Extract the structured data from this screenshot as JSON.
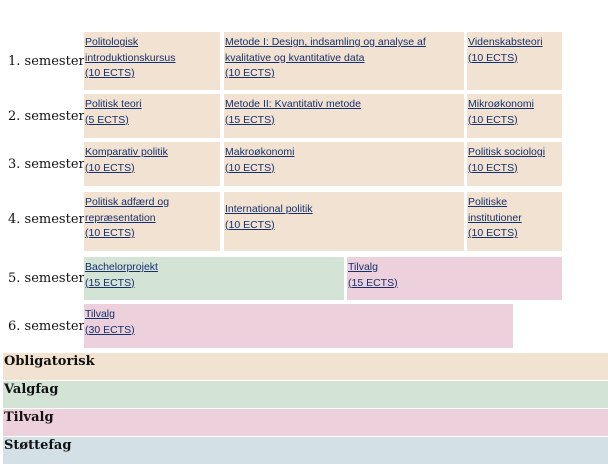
{
  "semesters": [
    {
      "label": "1. semester",
      "courses": [
        {
          "title": "Politologisk introduktionskursus",
          "ects": "(10 ECTS)",
          "type": "obligatorisk"
        },
        {
          "title": "Metode I: Design, indsamling og analyse af kvalitative og kvantitative data",
          "ects": "(10 ECTS)",
          "type": "obligatorisk"
        },
        {
          "title": "Videnskabsteori",
          "ects": "(10 ECTS)",
          "type": "obligatorisk"
        }
      ]
    },
    {
      "label": "2. semester",
      "courses": [
        {
          "title": "Politisk teori",
          "ects": "(5 ECTS)",
          "type": "obligatorisk"
        },
        {
          "title": "Metode II: Kvantitativ metode",
          "ects": "(15 ECTS)",
          "type": "obligatorisk"
        },
        {
          "title": "Mikroøkonomi",
          "ects": "(10 ECTS)",
          "type": "obligatorisk"
        }
      ]
    },
    {
      "label": "3. semester",
      "courses": [
        {
          "title": "Komparativ politik",
          "ects": "(10 ECTS)",
          "type": "obligatorisk"
        },
        {
          "title": "Makroøkonomi",
          "ects": "(10 ECTS)",
          "type": "obligatorisk"
        },
        {
          "title": "Politisk sociologi",
          "ects": "(10 ECTS)",
          "type": "obligatorisk"
        }
      ]
    },
    {
      "label": "4. semester",
      "courses": [
        {
          "title": "Politisk adfærd og repræsentation",
          "ects": "(10 ECTS)",
          "type": "obligatorisk"
        },
        {
          "title": "International politik",
          "ects": "(10 ECTS)",
          "type": "obligatorisk"
        },
        {
          "title": "Politiske institutioner",
          "ects": "(10 ECTS)",
          "type": "obligatorisk"
        }
      ]
    },
    {
      "label": "5. semester",
      "courses": [
        {
          "title": "Bachelorprojekt",
          "ects": "(15 ECTS)",
          "type": "valgfag"
        },
        {
          "title": "Tilvalg",
          "ects": "(15 ECTS)",
          "type": "tilvalg"
        }
      ]
    },
    {
      "label": "6. semester",
      "courses": [
        {
          "title": "Tilvalg",
          "ects": "(30 ECTS)",
          "type": "tilvalg"
        }
      ]
    }
  ],
  "legend": [
    {
      "label": "Obligatorisk",
      "color": "#f2e2d2"
    },
    {
      "label": "Valgfag",
      "color": "#d3e3d6"
    },
    {
      "label": "Tilvalg",
      "color": "#ecd0dc"
    },
    {
      "label": "Støttefag",
      "color": "#d3e1e6"
    }
  ]
}
